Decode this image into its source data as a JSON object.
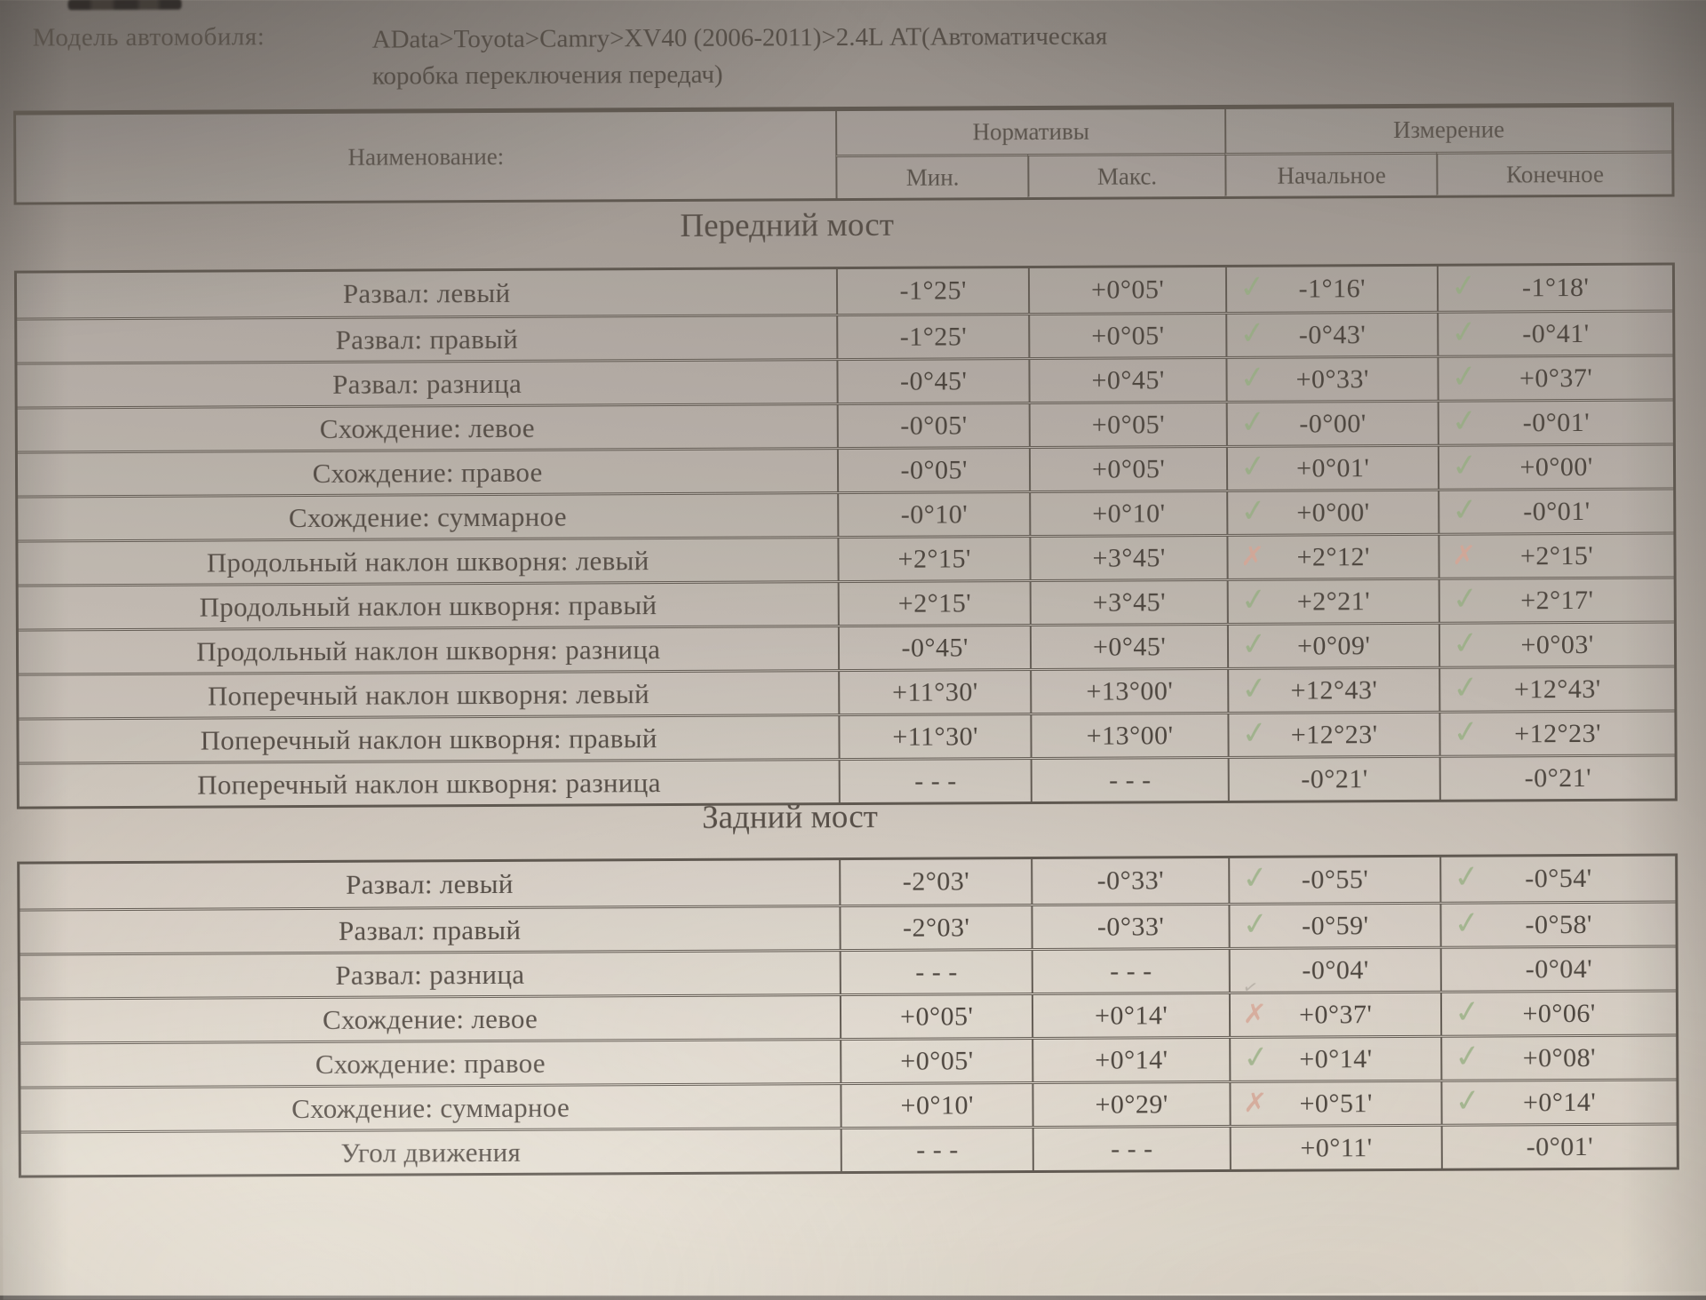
{
  "model": {
    "label": "Модель автомобиля:",
    "value_line1": "AData>Toyota>Camry>XV40 (2006-2011)>2.4L АТ(Автоматическая",
    "value_line2": "коробка переключения передач)"
  },
  "table_header": {
    "name": "Наименование:",
    "norms": "Нормативы",
    "measure": "Измерение",
    "min": "Мин.",
    "max": "Макс.",
    "initial": "Начальное",
    "final": "Конечное"
  },
  "marks": {
    "check": "✓",
    "cross": "✗",
    "stray": "✓"
  },
  "colors": {
    "check": "#92ad7c",
    "cross": "#d8a493",
    "ink": "#4d463f",
    "line": "#645d55"
  },
  "sections": [
    {
      "title": "Передний мост",
      "rows": [
        {
          "name": "Развал: левый",
          "min": "-1°25'",
          "max": "+0°05'",
          "initial": "-1°16'",
          "final": "-1°18'",
          "initial_mark": "check",
          "final_mark": "check"
        },
        {
          "name": "Развал: правый",
          "min": "-1°25'",
          "max": "+0°05'",
          "initial": "-0°43'",
          "final": "-0°41'",
          "initial_mark": "check",
          "final_mark": "check"
        },
        {
          "name": "Развал: разница",
          "min": "-0°45'",
          "max": "+0°45'",
          "initial": "+0°33'",
          "final": "+0°37'",
          "initial_mark": "check",
          "final_mark": "check"
        },
        {
          "name": "Схождение: левое",
          "min": "-0°05'",
          "max": "+0°05'",
          "initial": "-0°00'",
          "final": "-0°01'",
          "initial_mark": "check",
          "final_mark": "check"
        },
        {
          "name": "Схождение: правое",
          "min": "-0°05'",
          "max": "+0°05'",
          "initial": "+0°01'",
          "final": "+0°00'",
          "initial_mark": "check",
          "final_mark": "check"
        },
        {
          "name": "Схождение: суммарное",
          "min": "-0°10'",
          "max": "+0°10'",
          "initial": "+0°00'",
          "final": "-0°01'",
          "initial_mark": "check",
          "final_mark": "check"
        },
        {
          "name": "Продольный наклон шкворня: левый",
          "min": "+2°15'",
          "max": "+3°45'",
          "initial": "+2°12'",
          "final": "+2°15'",
          "initial_mark": "cross",
          "final_mark": "cross"
        },
        {
          "name": "Продольный наклон шкворня: правый",
          "min": "+2°15'",
          "max": "+3°45'",
          "initial": "+2°21'",
          "final": "+2°17'",
          "initial_mark": "check",
          "final_mark": "check"
        },
        {
          "name": "Продольный наклон шкворня: разница",
          "min": "-0°45'",
          "max": "+0°45'",
          "initial": "+0°09'",
          "final": "+0°03'",
          "initial_mark": "check",
          "final_mark": "check"
        },
        {
          "name": "Поперечный наклон шкворня: левый",
          "min": "+11°30'",
          "max": "+13°00'",
          "initial": "+12°43'",
          "final": "+12°43'",
          "initial_mark": "check",
          "final_mark": "check"
        },
        {
          "name": "Поперечный наклон шкворня: правый",
          "min": "+11°30'",
          "max": "+13°00'",
          "initial": "+12°23'",
          "final": "+12°23'",
          "initial_mark": "check",
          "final_mark": "check"
        },
        {
          "name": "Поперечный наклон шкворня: разница",
          "min": "- - -",
          "max": "- - -",
          "initial": "-0°21'",
          "final": "-0°21'",
          "initial_mark": "none",
          "final_mark": "none"
        }
      ]
    },
    {
      "title": "Задний мост",
      "rows": [
        {
          "name": "Развал: левый",
          "min": "-2°03'",
          "max": "-0°33'",
          "initial": "-0°55'",
          "final": "-0°54'",
          "initial_mark": "check",
          "final_mark": "check"
        },
        {
          "name": "Развал: правый",
          "min": "-2°03'",
          "max": "-0°33'",
          "initial": "-0°59'",
          "final": "-0°58'",
          "initial_mark": "check",
          "final_mark": "check"
        },
        {
          "name": "Развал: разница",
          "min": "- - -",
          "max": "- - -",
          "initial": "-0°04'",
          "final": "-0°04'",
          "initial_mark": "stray",
          "final_mark": "none"
        },
        {
          "name": "Схождение: левое",
          "min": "+0°05'",
          "max": "+0°14'",
          "initial": "+0°37'",
          "final": "+0°06'",
          "initial_mark": "cross",
          "final_mark": "check"
        },
        {
          "name": "Схождение: правое",
          "min": "+0°05'",
          "max": "+0°14'",
          "initial": "+0°14'",
          "final": "+0°08'",
          "initial_mark": "check",
          "final_mark": "check"
        },
        {
          "name": "Схождение: суммарное",
          "min": "+0°10'",
          "max": "+0°29'",
          "initial": "+0°51'",
          "final": "+0°14'",
          "initial_mark": "cross",
          "final_mark": "check"
        },
        {
          "name": "Угол движения",
          "min": "- - -",
          "max": "- - -",
          "initial": "+0°11'",
          "final": "-0°01'",
          "initial_mark": "none",
          "final_mark": "none"
        }
      ]
    }
  ]
}
